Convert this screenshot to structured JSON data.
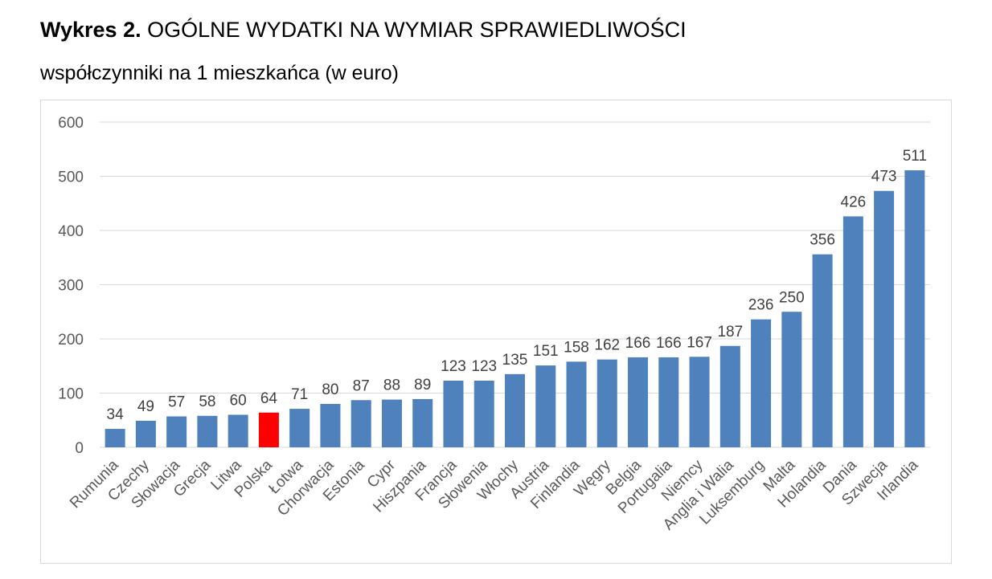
{
  "heading": {
    "prefix": "Wykres 2.",
    "title": "OGÓLNE WYDATKI NA WYMIAR SPRAWIEDLIWOŚCI",
    "subtitle": "współczynniki na 1 mieszkańca (w euro)"
  },
  "colors": {
    "bar": "#4f81bd",
    "highlight": "#ff0000",
    "grid": "#d9d9d9"
  },
  "chart_data": {
    "type": "bar",
    "title": "OGÓLNE WYDATKI NA WYMIAR SPRAWIEDLIWOŚCI",
    "subtitle": "współczynniki na 1 mieszkańca (w euro)",
    "categories": [
      "Rumunia",
      "Czechy",
      "Słowacja",
      "Grecja",
      "Litwa",
      "Polska",
      "Łotwa",
      "Chorwacja",
      "Estonia",
      "Cypr",
      "Hiszpania",
      "Francja",
      "Słowenia",
      "Włochy",
      "Austria",
      "Finlandia",
      "Węgry",
      "Belgia",
      "Portugalia",
      "Niemcy",
      "Anglia i Walia",
      "Luksemburg",
      "Malta",
      "Holandia",
      "Dania",
      "Szwecja",
      "Irlandia"
    ],
    "values": [
      34,
      49,
      57,
      58,
      60,
      64,
      71,
      80,
      87,
      88,
      89,
      123,
      123,
      135,
      151,
      158,
      162,
      166,
      166,
      167,
      187,
      236,
      250,
      356,
      426,
      473,
      511
    ],
    "highlight": "Polska",
    "ylim": [
      0,
      600
    ],
    "yticks": [
      0,
      100,
      200,
      300,
      400,
      500,
      600
    ],
    "xlabel": "",
    "ylabel": "",
    "grid": true,
    "legend": "none",
    "data_labels": true
  }
}
